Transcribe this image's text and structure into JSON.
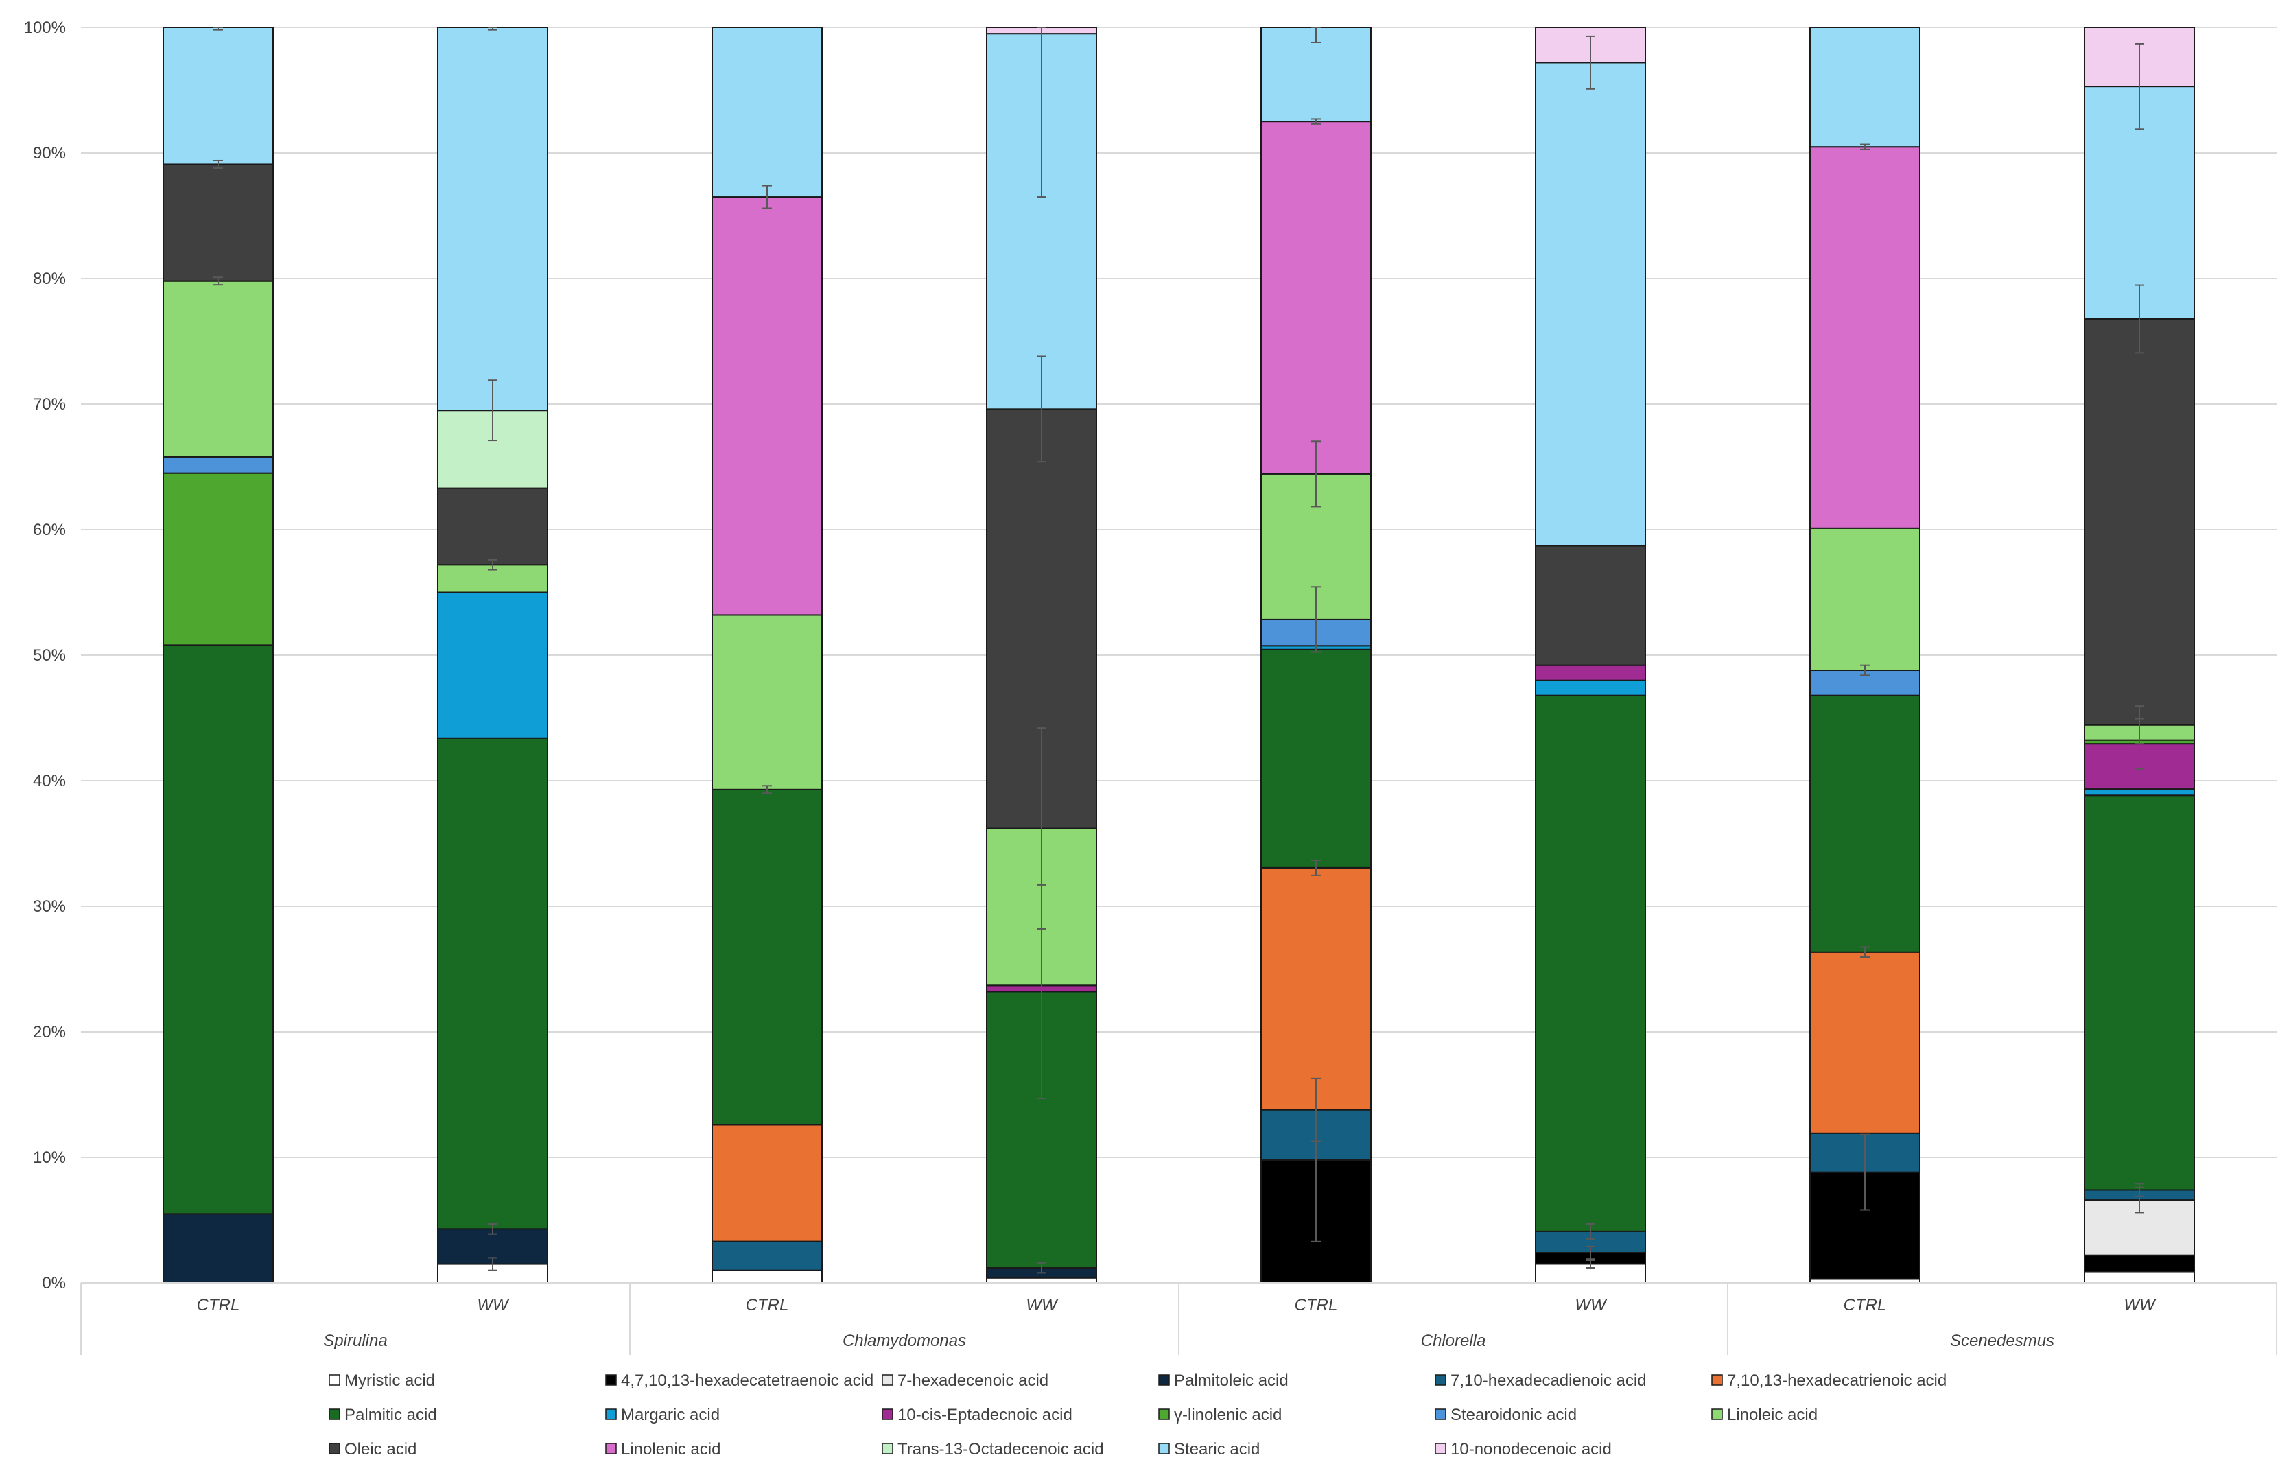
{
  "chart_data": {
    "type": "stacked-bar",
    "normalized": true,
    "ylim": [
      0,
      100
    ],
    "yticks": [
      "0%",
      "10%",
      "20%",
      "30%",
      "40%",
      "50%",
      "60%",
      "70%",
      "80%",
      "90%",
      "100%"
    ],
    "grid": true,
    "legend_position": "bottom",
    "groups": [
      {
        "name": "Spirulina",
        "treatments": [
          "CTRL",
          "WW"
        ]
      },
      {
        "name": "Chlamydomonas",
        "treatments": [
          "CTRL",
          "WW"
        ]
      },
      {
        "name": "Chlorella",
        "treatments": [
          "CTRL",
          "WW"
        ]
      },
      {
        "name": "Scenedesmus",
        "treatments": [
          "CTRL",
          "WW"
        ]
      }
    ],
    "categories": [
      "Spirulina CTRL",
      "Spirulina WW",
      "Chlamydomonas CTRL",
      "Chlamydomonas WW",
      "Chlorella CTRL",
      "Chlorella WW",
      "Scenedesmus CTRL",
      "Scenedesmus WW"
    ],
    "series": [
      {
        "name": "Myristic acid",
        "color": "#ffffff",
        "values": [
          0,
          1.5,
          1.0,
          0.4,
          0,
          1.5,
          0.3,
          0.9
        ],
        "errors": [
          0,
          0.5,
          0,
          0,
          0,
          0.3,
          0,
          0
        ]
      },
      {
        "name": "4,7,10,13-hexadecatetraenoic acid",
        "color": "#000000",
        "values": [
          0,
          0,
          0,
          0,
          9.8,
          0.9,
          8.5,
          1.3
        ],
        "errors": [
          0,
          0,
          0,
          0,
          6.5,
          0.5,
          3.0,
          0
        ]
      },
      {
        "name": "7-hexadecenoic acid",
        "color": "#e8e8e8",
        "values": [
          0,
          0,
          0,
          0,
          0,
          0,
          0,
          4.4
        ],
        "errors": [
          0,
          0,
          0,
          0,
          0,
          0,
          0,
          1.0
        ]
      },
      {
        "name": "Palmitoleic acid",
        "color": "#0e2841",
        "values": [
          5.5,
          2.8,
          0,
          0.8,
          0,
          0,
          0,
          0
        ],
        "errors": [
          0,
          0.4,
          0,
          0.4,
          0,
          0,
          0,
          0
        ]
      },
      {
        "name": "7,10-hexadecadienoic acid",
        "color": "#156082",
        "values": [
          0,
          0,
          2.3,
          0,
          4.0,
          1.7,
          3.1,
          0.8
        ],
        "errors": [
          0,
          0,
          0,
          0,
          2.5,
          0.6,
          0,
          0.5
        ]
      },
      {
        "name": "7,10,13-hexadecatrienoic acid",
        "color": "#e97132",
        "values": [
          0,
          0,
          9.3,
          0,
          19.3,
          0,
          14.4,
          0
        ],
        "errors": [
          0,
          0,
          0,
          0,
          0.6,
          0,
          0.4,
          0
        ]
      },
      {
        "name": "Palmitic acid",
        "color": "#196b24",
        "values": [
          45.3,
          39.1,
          26.7,
          22.0,
          17.4,
          42.6,
          20.4,
          31.4
        ],
        "errors": [
          0,
          0,
          0.3,
          8.5,
          0,
          0,
          0,
          0
        ]
      },
      {
        "name": "Margaric acid",
        "color": "#0f9ed5",
        "values": [
          0,
          11.6,
          0,
          0,
          0.3,
          1.2,
          0,
          0.5
        ],
        "errors": [
          0,
          0,
          0,
          0,
          0,
          0,
          0,
          0
        ]
      },
      {
        "name": "10-cis-Eptadecnoic acid",
        "color": "#a02b93",
        "values": [
          0,
          0,
          0,
          0.5,
          0,
          1.2,
          0,
          3.6
        ],
        "errors": [
          0,
          0,
          0,
          0,
          0,
          0,
          0,
          2.0
        ]
      },
      {
        "name": "γ-linolenic acid",
        "color": "#4ea72e",
        "values": [
          13.7,
          0,
          0,
          0,
          0,
          0,
          0,
          0.3
        ],
        "errors": [
          0,
          0,
          0,
          0,
          0,
          0,
          0,
          0
        ]
      },
      {
        "name": "Stearoidonic acid",
        "color": "#4d93d9",
        "values": [
          1.3,
          0,
          0,
          0,
          2.1,
          0,
          2.0,
          0
        ],
        "errors": [
          0,
          0,
          0,
          0,
          2.6,
          0,
          0.4,
          0
        ]
      },
      {
        "name": "Linoleic acid",
        "color": "#8ed973",
        "values": [
          14.0,
          2.2,
          13.9,
          12.5,
          11.6,
          0,
          11.3,
          1.2
        ],
        "errors": [
          0.3,
          0.4,
          0,
          8.0,
          2.6,
          0,
          0,
          1.5
        ]
      },
      {
        "name": "Oleic acid",
        "color": "#404040",
        "values": [
          9.3,
          6.1,
          0,
          33.4,
          0,
          9.5,
          0,
          32.3
        ],
        "errors": [
          0.3,
          0,
          0,
          4.2,
          0,
          0,
          0,
          2.7
        ]
      },
      {
        "name": "Linolenic acid",
        "color": "#d86ecc",
        "values": [
          0,
          0,
          33.3,
          0,
          28.1,
          0,
          30.3,
          0
        ],
        "errors": [
          0,
          0,
          0.9,
          0,
          0.2,
          0,
          0.2,
          0
        ]
      },
      {
        "name": "Trans-13-Octadecenoic acid",
        "color": "#c4f0c8",
        "values": [
          0,
          6.2,
          0,
          0,
          0,
          0,
          0,
          0
        ],
        "errors": [
          0,
          2.4,
          0,
          0,
          0,
          0,
          0,
          0
        ]
      },
      {
        "name": "Stearic acid",
        "color": "#97dbf6",
        "values": [
          10.9,
          30.5,
          13.5,
          29.9,
          7.5,
          38.4,
          9.5,
          18.5
        ],
        "errors": [
          0.2,
          0.2,
          0,
          13.0,
          1.2,
          2.1,
          0,
          3.4
        ]
      },
      {
        "name": "10-nonodecenoic acid",
        "color": "#f2cfee",
        "values": [
          0,
          0,
          0,
          0.5,
          0,
          2.8,
          0,
          4.7
        ],
        "errors": [
          0,
          0,
          0,
          0,
          0,
          0,
          0,
          0
        ]
      }
    ]
  }
}
